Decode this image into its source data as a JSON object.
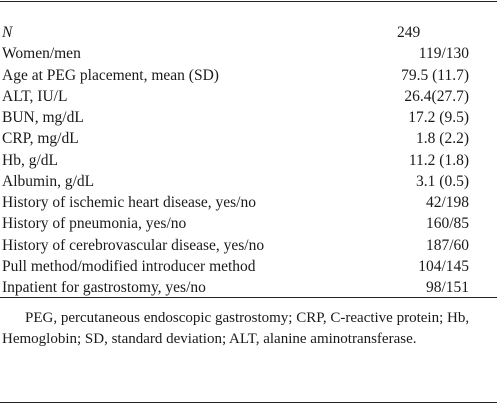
{
  "table": {
    "rows": [
      {
        "label": "N",
        "value": "249"
      },
      {
        "label": "Women/men",
        "value": "119/130"
      },
      {
        "label": "Age at PEG placement, mean (SD)",
        "value": "79.5 (11.7)"
      },
      {
        "label": "ALT, IU/L",
        "value": "26.4(27.7)"
      },
      {
        "label": "BUN, mg/dL",
        "value": "17.2 (9.5)"
      },
      {
        "label": "CRP, mg/dL",
        "value": "1.8 (2.2)"
      },
      {
        "label": "Hb, g/dL",
        "value": "11.2 (1.8)"
      },
      {
        "label": "Albumin, g/dL",
        "value": "3.1 (0.5)"
      },
      {
        "label": "History of ischemic heart disease, yes/no",
        "value": "42/198"
      },
      {
        "label": "History of pneumonia, yes/no",
        "value": "160/85"
      },
      {
        "label": "History of cerebrovascular disease, yes/no",
        "value": "187/60"
      },
      {
        "label": "Pull method/modified introducer method",
        "value": "104/145"
      },
      {
        "label": "Inpatient for gastrostomy, yes/no",
        "value": "98/151"
      }
    ]
  },
  "footnote": "PEG, percutaneous endoscopic gastrostomy; CRP, C-reactive protein; Hb, Hemoglobin; SD, standard deviation; ALT, alanine aminotransferase."
}
